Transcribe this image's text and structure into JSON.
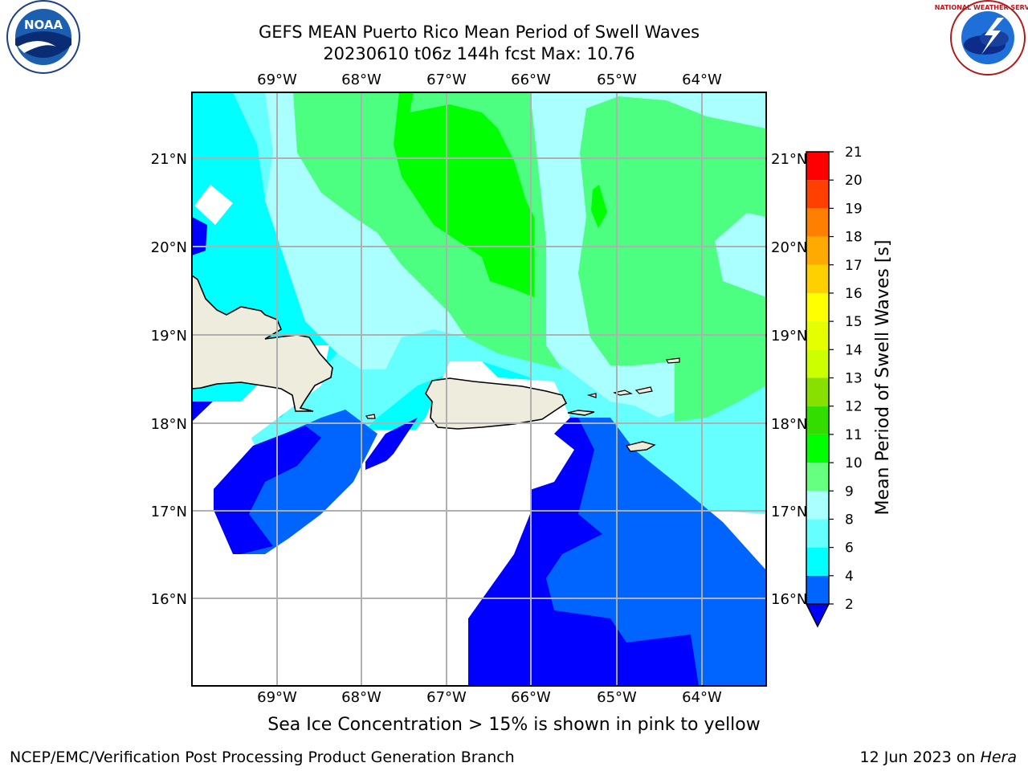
{
  "header": {
    "title_line1": "GEFS MEAN Puerto Rico Mean Period of Swell Waves",
    "title_line2": "20230610 t06z 144h fcst   Max: 10.76"
  },
  "map": {
    "lon_labels": [
      "69°W",
      "68°W",
      "67°W",
      "66°W",
      "65°W",
      "64°W"
    ],
    "lat_labels": [
      "21°N",
      "20°N",
      "19°N",
      "18°N",
      "17°N",
      "16°N"
    ]
  },
  "colorbar": {
    "label": "Mean Period of Swell Waves [s]",
    "levels": [
      "2",
      "4",
      "6",
      "8",
      "9",
      "10",
      "11",
      "12",
      "13",
      "14",
      "15",
      "16",
      "17",
      "18",
      "19",
      "20",
      "21"
    ],
    "colors": [
      "#0000ff",
      "#0064ff",
      "#00ffff",
      "#66ffff",
      "#aaffff",
      "#66ff80",
      "#00ff00",
      "#33dd00",
      "#88e000",
      "#ccff00",
      "#e6ff00",
      "#ffff00",
      "#ffd000",
      "#ffaa00",
      "#ff8000",
      "#ff4000",
      "#ff0000"
    ]
  },
  "footer": {
    "note": "Sea Ice Concentration > 15% is shown in pink to yellow",
    "credit_left": "NCEP/EMC/Verification Post Processing Product Generation Branch",
    "credit_date": "12 Jun 2023 on ",
    "credit_machine": "Hera"
  },
  "logos": {
    "left": "NOAA",
    "right": "NATIONAL WEATHER SERVICE"
  }
}
